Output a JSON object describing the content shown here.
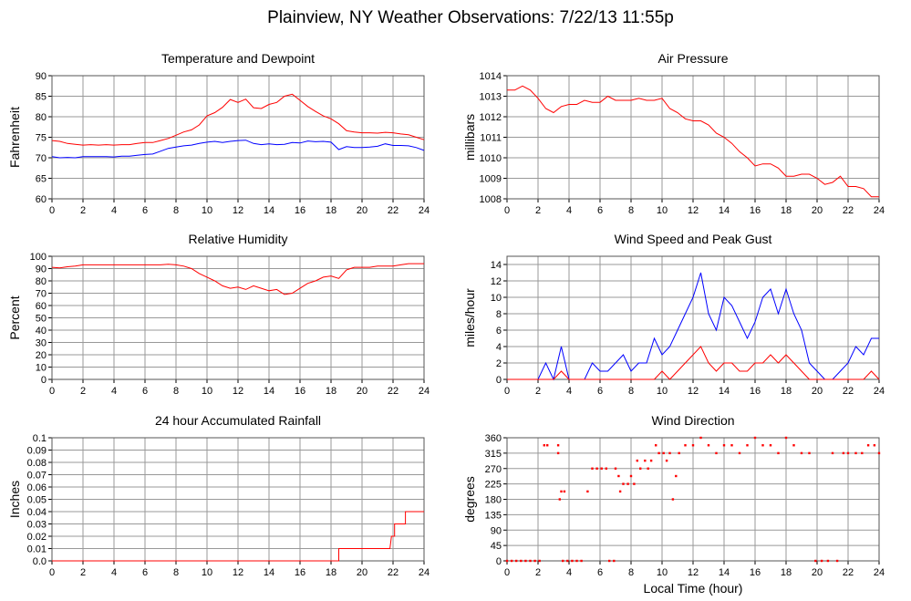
{
  "title": "Plainview, NY Weather Observations: 7/22/13 11:55p",
  "chart_data": [
    {
      "id": "temp",
      "type": "line",
      "title": "Temperature and Dewpoint",
      "ylabel": "Fahrenheit",
      "xlabel": "",
      "xlim": [
        0,
        24
      ],
      "ylim": [
        60,
        90
      ],
      "xticks": [
        "0",
        "2",
        "4",
        "6",
        "8",
        "10",
        "12",
        "14",
        "16",
        "18",
        "20",
        "22",
        "24"
      ],
      "yticks": [
        "60",
        "65",
        "70",
        "75",
        "80",
        "85",
        "90"
      ],
      "series": [
        {
          "name": "Temperature",
          "color": "#ff0000",
          "x_step": 0.5,
          "values": [
            74.2,
            74,
            73.5,
            73.3,
            73.1,
            73.2,
            73.1,
            73.2,
            73.1,
            73.2,
            73.2,
            73.5,
            73.7,
            73.7,
            74.2,
            74.7,
            75.5,
            76.3,
            76.8,
            78,
            80.2,
            81,
            82.3,
            84.2,
            83.5,
            84.3,
            82.2,
            82,
            83,
            83.5,
            85,
            85.5,
            84,
            82.5,
            81.3,
            80.2,
            79.5,
            78.3,
            76.6,
            76.3,
            76.1,
            76.1,
            76,
            76.2,
            76.1,
            75.8,
            75.6,
            75,
            74.4
          ]
        },
        {
          "name": "Dewpoint",
          "color": "#0000ff",
          "x_step": 0.5,
          "values": [
            70.3,
            70,
            70.1,
            70,
            70.3,
            70.3,
            70.3,
            70.3,
            70.2,
            70.4,
            70.4,
            70.6,
            70.8,
            70.9,
            71.6,
            72.3,
            72.6,
            72.9,
            73.1,
            73.5,
            73.8,
            74,
            73.7,
            74,
            74.2,
            74.3,
            73.5,
            73.2,
            73.4,
            73.2,
            73.3,
            73.7,
            73.6,
            74.1,
            73.9,
            74,
            73.8,
            72,
            72.7,
            72.5,
            72.5,
            72.6,
            72.8,
            73.4,
            73,
            73,
            72.9,
            72.5,
            71.8
          ]
        }
      ]
    },
    {
      "id": "pressure",
      "type": "line",
      "title": "Air Pressure",
      "ylabel": "millibars",
      "xlabel": "",
      "xlim": [
        0,
        24
      ],
      "ylim": [
        1008,
        1014
      ],
      "xticks": [
        "0",
        "2",
        "4",
        "6",
        "8",
        "10",
        "12",
        "14",
        "16",
        "18",
        "20",
        "22",
        "24"
      ],
      "yticks": [
        "1008",
        "1009",
        "1010",
        "1011",
        "1012",
        "1013",
        "1014"
      ],
      "series": [
        {
          "name": "Pressure",
          "color": "#ff0000",
          "x_step": 0.5,
          "values": [
            1013.3,
            1013.3,
            1013.5,
            1013.3,
            1012.9,
            1012.4,
            1012.2,
            1012.5,
            1012.6,
            1012.6,
            1012.8,
            1012.7,
            1012.7,
            1013,
            1012.8,
            1012.8,
            1012.8,
            1012.9,
            1012.8,
            1012.8,
            1012.9,
            1012.4,
            1012.2,
            1011.9,
            1011.8,
            1011.8,
            1011.6,
            1011.2,
            1011,
            1010.7,
            1010.3,
            1010,
            1009.6,
            1009.7,
            1009.7,
            1009.5,
            1009.1,
            1009.1,
            1009.2,
            1009.2,
            1009,
            1008.7,
            1008.8,
            1009.1,
            1008.6,
            1008.6,
            1008.5,
            1008.1,
            1008.1
          ]
        }
      ]
    },
    {
      "id": "humidity",
      "type": "line",
      "title": "Relative Humidity",
      "ylabel": "Percent",
      "xlabel": "",
      "xlim": [
        0,
        24
      ],
      "ylim": [
        0,
        100
      ],
      "xticks": [
        "0",
        "2",
        "4",
        "6",
        "8",
        "10",
        "12",
        "14",
        "16",
        "18",
        "20",
        "22",
        "24"
      ],
      "yticks": [
        "0",
        "10",
        "20",
        "30",
        "40",
        "50",
        "60",
        "70",
        "80",
        "90",
        "100"
      ],
      "series": [
        {
          "name": "Relative Humidity",
          "color": "#ff0000",
          "x_step": 0.5,
          "values": [
            91,
            90.5,
            91.5,
            92,
            93,
            93,
            93,
            93,
            93,
            93,
            93,
            93,
            93,
            93,
            93,
            93.5,
            93,
            92,
            90,
            86,
            83,
            80,
            76,
            74,
            75,
            73,
            76,
            74,
            72,
            73,
            69,
            70,
            74,
            78,
            80,
            83,
            84,
            82,
            89,
            91,
            91,
            91,
            92,
            92,
            92,
            93,
            94,
            94,
            94
          ]
        }
      ]
    },
    {
      "id": "wind",
      "type": "line",
      "title": "Wind Speed and Peak Gust",
      "ylabel": "miles/hour",
      "xlabel": "",
      "xlim": [
        0,
        24
      ],
      "ylim": [
        0,
        15
      ],
      "xticks": [
        "0",
        "2",
        "4",
        "6",
        "8",
        "10",
        "12",
        "14",
        "16",
        "18",
        "20",
        "22",
        "24"
      ],
      "yticks": [
        "0",
        "2",
        "4",
        "6",
        "8",
        "10",
        "12",
        "14"
      ],
      "series": [
        {
          "name": "Peak Gust",
          "color": "#0000ff",
          "x_step": 0.5,
          "values": [
            0,
            0,
            0,
            0,
            0,
            2,
            0,
            4,
            0,
            0,
            0,
            2,
            1,
            1,
            2,
            3,
            1,
            2,
            2,
            5,
            3,
            4,
            6,
            8,
            10,
            13,
            8,
            6,
            10,
            9,
            7,
            5,
            7,
            10,
            11,
            8,
            11,
            8,
            6,
            2,
            1,
            0,
            0,
            1,
            2,
            4,
            3,
            5,
            5
          ]
        },
        {
          "name": "Wind Speed",
          "color": "#ff0000",
          "x_step": 0.5,
          "values": [
            0,
            0,
            0,
            0,
            0,
            0,
            0,
            1,
            0,
            0,
            0,
            0,
            0,
            0,
            0,
            0,
            0,
            0,
            0,
            0,
            1,
            0,
            1,
            2,
            3,
            4,
            2,
            1,
            2,
            2,
            1,
            1,
            2,
            2,
            3,
            2,
            3,
            2,
            1,
            0,
            0,
            0,
            0,
            0,
            0,
            0,
            0,
            1,
            0
          ]
        }
      ]
    },
    {
      "id": "rain",
      "type": "line",
      "title": "24 hour Accumulated Rainfall",
      "ylabel": "Inches",
      "xlabel": "",
      "xlim": [
        0,
        24
      ],
      "ylim": [
        0,
        0.1
      ],
      "xticks": [
        "0",
        "2",
        "4",
        "6",
        "8",
        "10",
        "12",
        "14",
        "16",
        "18",
        "20",
        "22",
        "24"
      ],
      "yticks": [
        "0.0",
        "0.01",
        "0.02",
        "0.03",
        "0.04",
        "0.05",
        "0.06",
        "0.07",
        "0.08",
        "0.09",
        "0.1"
      ],
      "series": [
        {
          "name": "Rainfall",
          "color": "#ff0000",
          "points": [
            [
              0,
              0
            ],
            [
              18.5,
              0
            ],
            [
              18.5,
              0.01
            ],
            [
              21.8,
              0.01
            ],
            [
              21.9,
              0.02
            ],
            [
              22.1,
              0.02
            ],
            [
              22.1,
              0.03
            ],
            [
              22.8,
              0.03
            ],
            [
              22.8,
              0.04
            ],
            [
              24,
              0.04
            ]
          ]
        }
      ]
    },
    {
      "id": "direction",
      "type": "scatter",
      "title": "Wind Direction",
      "ylabel": "degrees",
      "xlabel": "Local Time (hour)",
      "xlim": [
        0,
        24
      ],
      "ylim": [
        0,
        360
      ],
      "xticks": [
        "0",
        "2",
        "4",
        "6",
        "8",
        "10",
        "12",
        "14",
        "16",
        "18",
        "20",
        "22",
        "24"
      ],
      "yticks": [
        "0",
        "45",
        "90",
        "135",
        "180",
        "225",
        "270",
        "315",
        "360"
      ],
      "series": [
        {
          "name": "Direction",
          "color": "#ff0000",
          "points": [
            [
              0,
              0
            ],
            [
              0.3,
              0
            ],
            [
              0.6,
              0
            ],
            [
              0.9,
              0
            ],
            [
              1.2,
              0
            ],
            [
              1.5,
              0
            ],
            [
              1.8,
              0
            ],
            [
              2.1,
              0
            ],
            [
              2.4,
              338
            ],
            [
              2.6,
              338
            ],
            [
              3.3,
              338
            ],
            [
              3.3,
              315
            ],
            [
              3.4,
              180
            ],
            [
              3.5,
              203
            ],
            [
              3.7,
              203
            ],
            [
              3.6,
              0
            ],
            [
              3.9,
              0
            ],
            [
              4.2,
              0
            ],
            [
              4.5,
              0
            ],
            [
              4.8,
              0
            ],
            [
              5.2,
              203
            ],
            [
              5.5,
              270
            ],
            [
              5.8,
              270
            ],
            [
              6.1,
              270
            ],
            [
              6.4,
              270
            ],
            [
              6.6,
              0
            ],
            [
              6.9,
              0
            ],
            [
              7,
              270
            ],
            [
              7.2,
              248
            ],
            [
              7.3,
              203
            ],
            [
              7.5,
              225
            ],
            [
              7.8,
              225
            ],
            [
              8.0,
              248
            ],
            [
              8.2,
              225
            ],
            [
              8.4,
              293
            ],
            [
              8.6,
              270
            ],
            [
              8.9,
              293
            ],
            [
              9.1,
              270
            ],
            [
              9.3,
              293
            ],
            [
              9.6,
              338
            ],
            [
              9.8,
              315
            ],
            [
              10.1,
              315
            ],
            [
              10.3,
              293
            ],
            [
              10.5,
              315
            ],
            [
              10.7,
              180
            ],
            [
              10.9,
              248
            ],
            [
              11.1,
              315
            ],
            [
              11.5,
              338
            ],
            [
              12,
              338
            ],
            [
              12.5,
              360
            ],
            [
              13,
              338
            ],
            [
              13.5,
              315
            ],
            [
              14,
              338
            ],
            [
              14.5,
              338
            ],
            [
              15,
              315
            ],
            [
              15.5,
              338
            ],
            [
              16,
              360
            ],
            [
              16.5,
              338
            ],
            [
              17,
              338
            ],
            [
              17.5,
              315
            ],
            [
              18,
              360
            ],
            [
              18.5,
              338
            ],
            [
              19,
              315
            ],
            [
              19.5,
              315
            ],
            [
              19.9,
              0
            ],
            [
              20.3,
              0
            ],
            [
              20.7,
              0
            ],
            [
              21,
              315
            ],
            [
              21.3,
              0
            ],
            [
              21.7,
              315
            ],
            [
              22,
              315
            ],
            [
              22.5,
              315
            ],
            [
              22.9,
              315
            ],
            [
              23.3,
              338
            ],
            [
              23.7,
              338
            ],
            [
              24,
              315
            ]
          ]
        }
      ]
    }
  ]
}
